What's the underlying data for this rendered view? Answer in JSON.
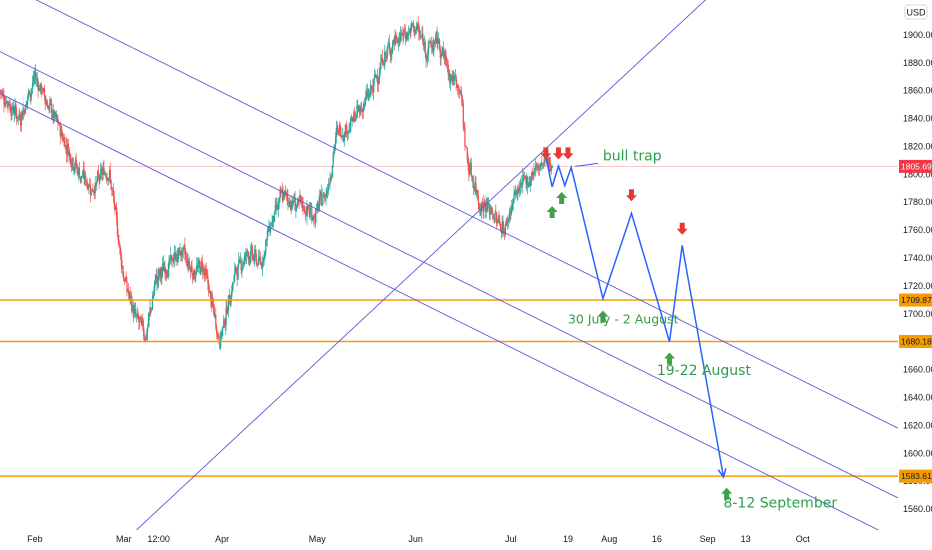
{
  "chart_data": {
    "type": "candlestick",
    "currency_label": "USD",
    "ylim": [
      1545,
      1925
    ],
    "y_ticks": [
      1560,
      1580,
      1600,
      1620,
      1640,
      1660,
      1680,
      1700,
      1720,
      1740,
      1760,
      1780,
      1800,
      1820,
      1840,
      1860,
      1880,
      1900
    ],
    "y_tick_labels": [
      "1560.00",
      "1580.00",
      "1600.00",
      "1620.00",
      "1640.00",
      "1660.00",
      "1680.00",
      "1700.00",
      "1720.00",
      "1740.00",
      "1760.00",
      "1780.00",
      "1800.00",
      "1820.00",
      "1840.00",
      "1860.00",
      "1880.00",
      "1900.00"
    ],
    "x_ticks": [
      {
        "label": "Feb",
        "date": "2021-02-01"
      },
      {
        "label": "Mar",
        "date": "2021-03-01"
      },
      {
        "label": "12:00",
        "date": "2021-03-12"
      },
      {
        "label": "Apr",
        "date": "2021-04-01"
      },
      {
        "label": "May",
        "date": "2021-05-01"
      },
      {
        "label": "Jun",
        "date": "2021-06-01"
      },
      {
        "label": "Jul",
        "date": "2021-07-01"
      },
      {
        "label": "19",
        "date": "2021-07-19"
      },
      {
        "label": "Aug",
        "date": "2021-08-01"
      },
      {
        "label": "16",
        "date": "2021-08-16"
      },
      {
        "label": "Sep",
        "date": "2021-09-01"
      },
      {
        "label": "13",
        "date": "2021-09-13"
      },
      {
        "label": "Oct",
        "date": "2021-10-01"
      }
    ],
    "x_range": [
      "2021-01-21",
      "2021-10-31"
    ],
    "price_path": [
      [
        "2021-01-21",
        1860
      ],
      [
        "2021-01-27",
        1840
      ],
      [
        "2021-02-01",
        1870
      ],
      [
        "2021-02-08",
        1835
      ],
      [
        "2021-02-15",
        1800
      ],
      [
        "2021-02-19",
        1790
      ],
      [
        "2021-02-24",
        1805
      ],
      [
        "2021-03-01",
        1725
      ],
      [
        "2021-03-04",
        1700
      ],
      [
        "2021-03-08",
        1685
      ],
      [
        "2021-03-11",
        1725
      ],
      [
        "2021-03-15",
        1735
      ],
      [
        "2021-03-19",
        1745
      ],
      [
        "2021-03-23",
        1730
      ],
      [
        "2021-03-26",
        1735
      ],
      [
        "2021-03-31",
        1680
      ],
      [
        "2021-04-05",
        1730
      ],
      [
        "2021-04-09",
        1745
      ],
      [
        "2021-04-13",
        1735
      ],
      [
        "2021-04-16",
        1765
      ],
      [
        "2021-04-20",
        1785
      ],
      [
        "2021-04-23",
        1780
      ],
      [
        "2021-04-27",
        1775
      ],
      [
        "2021-04-30",
        1770
      ],
      [
        "2021-05-04",
        1790
      ],
      [
        "2021-05-07",
        1830
      ],
      [
        "2021-05-11",
        1835
      ],
      [
        "2021-05-14",
        1845
      ],
      [
        "2021-05-18",
        1860
      ],
      [
        "2021-05-21",
        1880
      ],
      [
        "2021-05-25",
        1895
      ],
      [
        "2021-05-28",
        1900
      ],
      [
        "2021-06-01",
        1905
      ],
      [
        "2021-06-04",
        1890
      ],
      [
        "2021-06-08",
        1895
      ],
      [
        "2021-06-11",
        1875
      ],
      [
        "2021-06-15",
        1860
      ],
      [
        "2021-06-17",
        1810
      ],
      [
        "2021-06-21",
        1780
      ],
      [
        "2021-06-24",
        1775
      ],
      [
        "2021-06-29",
        1760
      ],
      [
        "2021-07-02",
        1785
      ],
      [
        "2021-07-06",
        1795
      ],
      [
        "2021-07-09",
        1805
      ],
      [
        "2021-07-14",
        1810
      ]
    ],
    "horizontal_levels": [
      {
        "value": 1709.87,
        "label": "1709.87",
        "color": "#f59d00"
      },
      {
        "value": 1680.18,
        "label": "1680.18",
        "color": "#f59d00"
      },
      {
        "value": 1583.61,
        "label": "1583.61",
        "color": "#f59d00"
      }
    ],
    "last_price": {
      "value": 1805.69,
      "label": "1805.69",
      "color": "#f23645"
    },
    "channel_lines": [
      {
        "from": [
          "2021-01-21",
          1938
        ],
        "to": [
          "2021-10-31",
          1618
        ]
      },
      {
        "from": [
          "2021-01-21",
          1888
        ],
        "to": [
          "2021-10-31",
          1568
        ]
      },
      {
        "from": [
          "2021-01-21",
          1858
        ],
        "to": [
          "2021-10-31",
          1538
        ]
      },
      {
        "from": [
          "2021-03-05",
          1545
        ],
        "to": [
          "2021-09-05",
          1935
        ]
      }
    ],
    "projection_path": [
      [
        "2021-07-12",
        1813
      ],
      [
        "2021-07-14",
        1791
      ],
      [
        "2021-07-16",
        1806
      ],
      [
        "2021-07-18",
        1792
      ],
      [
        "2021-07-20",
        1805
      ],
      [
        "2021-07-30",
        1711
      ],
      [
        "2021-08-08",
        1772
      ],
      [
        "2021-08-20",
        1680
      ],
      [
        "2021-08-24",
        1749
      ],
      [
        "2021-09-06",
        1583
      ]
    ],
    "down_arrows": [
      [
        "2021-07-12",
        1815
      ],
      [
        "2021-07-16",
        1815
      ],
      [
        "2021-07-19",
        1815
      ],
      [
        "2021-08-08",
        1785
      ],
      [
        "2021-08-24",
        1761
      ]
    ],
    "up_arrows": [
      [
        "2021-07-14",
        1773
      ],
      [
        "2021-07-17",
        1783
      ],
      [
        "2021-07-30",
        1698
      ],
      [
        "2021-08-20",
        1668
      ],
      [
        "2021-09-07",
        1571
      ]
    ],
    "annotations": [
      {
        "text": "bull trap",
        "at": [
          "2021-07-30",
          1810
        ],
        "size": 14
      },
      {
        "text": "30 July - 2 August",
        "at": [
          "2021-07-19",
          1693
        ],
        "size": 12.5
      },
      {
        "text": "19-22 August",
        "at": [
          "2021-08-16",
          1656
        ],
        "size": 14
      },
      {
        "text": "8-12 September",
        "at": [
          "2021-09-06",
          1561
        ],
        "size": 14
      }
    ],
    "colors": {
      "up": "#26a69a",
      "down": "#ef5350",
      "channel": "#5b5bd6",
      "projection": "#2962ff",
      "level": "#f59d00",
      "annotation": "#2e9e4a",
      "down_arrow": "#e53935",
      "up_arrow": "#43a047"
    }
  }
}
